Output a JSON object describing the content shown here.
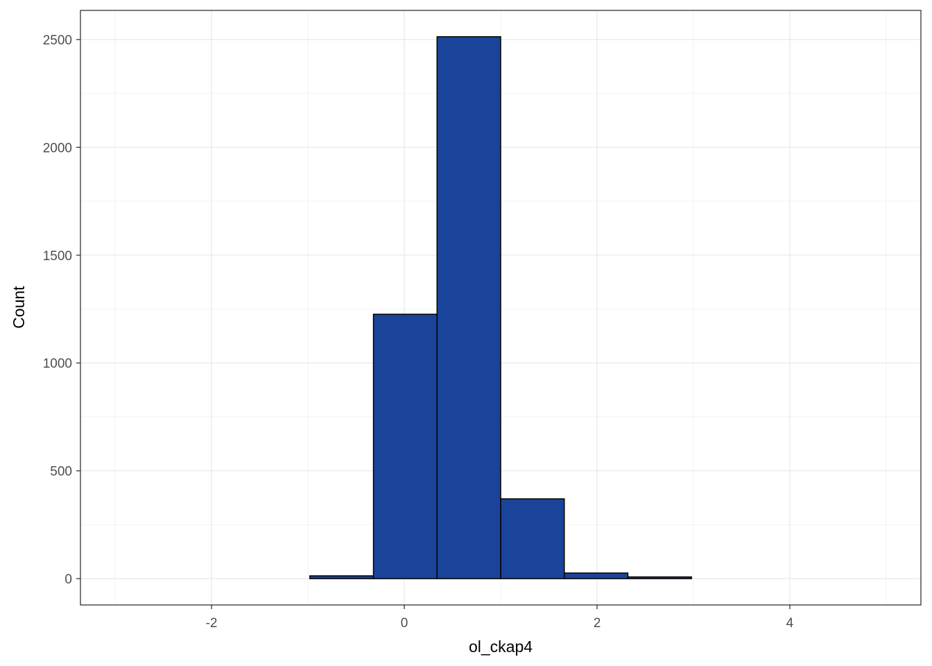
{
  "chart_data": {
    "type": "histogram",
    "x_label": "ol_ckap4",
    "y_label": "Count",
    "bins": [
      -2.96,
      -2.3,
      -1.64,
      -0.98,
      -0.32,
      0.34,
      1.0,
      1.66,
      2.32,
      2.98,
      3.64,
      4.3,
      4.96
    ],
    "counts": [
      0,
      0,
      0,
      13,
      1226,
      2513,
      370,
      26,
      8,
      0,
      0,
      0
    ],
    "color": "#1a4499",
    "xlim": [
      -3.36,
      5.36
    ],
    "xticks": [
      -2,
      0,
      2,
      4
    ],
    "ylim": [
      -122,
      2635
    ],
    "yticks": [
      0,
      500,
      1000,
      1500,
      2000,
      2500
    ],
    "grid": true
  }
}
